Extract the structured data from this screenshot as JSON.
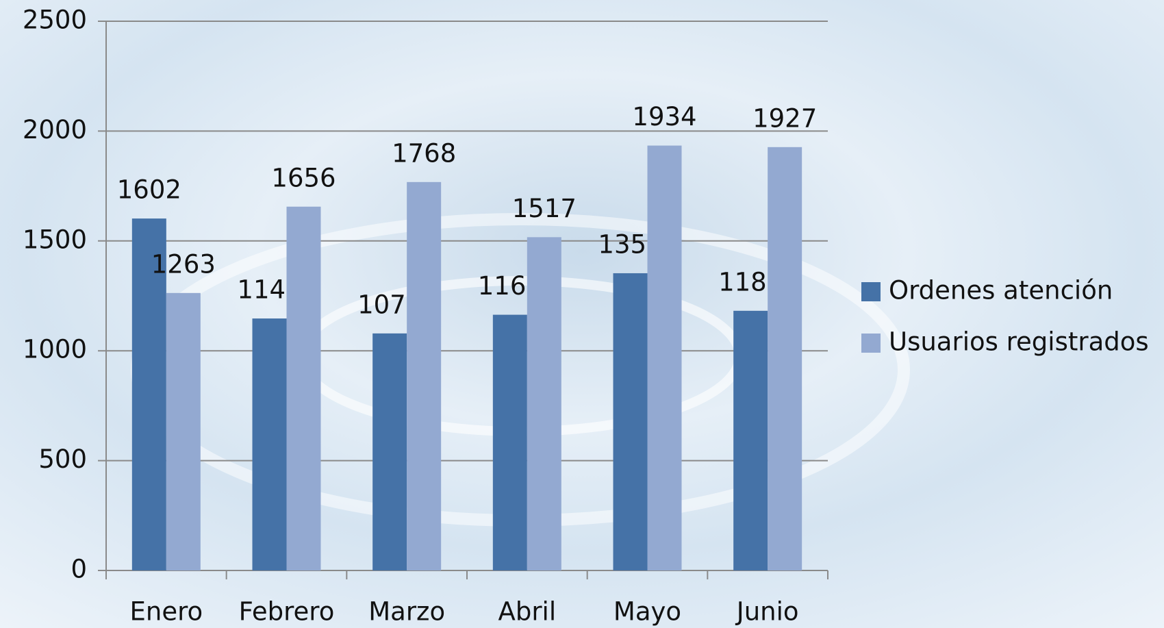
{
  "chart_data": {
    "type": "bar",
    "categories": [
      "Enero",
      "Febrero",
      "Marzo",
      "Abril",
      "Mayo",
      "Junio"
    ],
    "series": [
      {
        "name": "Ordenes atención",
        "color": "#4572a7",
        "values": [
          1602,
          1147,
          1079,
          1164,
          1353,
          1182
        ]
      },
      {
        "name": "Usuarios registrados",
        "color": "#93a9d1",
        "values": [
          1263,
          1656,
          1768,
          1517,
          1934,
          1927
        ]
      }
    ],
    "ylim": [
      0,
      2500
    ],
    "yticks": [
      0,
      500,
      1000,
      1500,
      2000,
      2500
    ],
    "grid": true,
    "legend": "right",
    "data_labels": true
  }
}
